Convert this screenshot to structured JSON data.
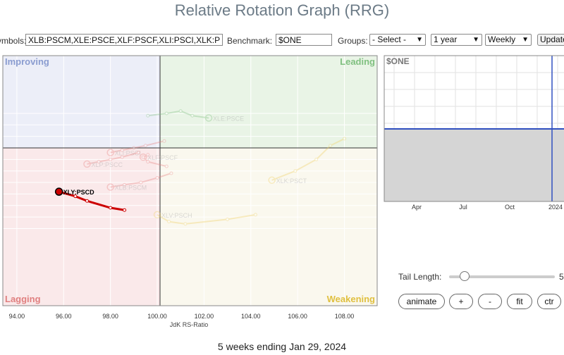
{
  "title": "Relative Rotation Graph (RRG)",
  "toolbar": {
    "symbols_label": "Symbols:",
    "symbols_value": "XLB:PSCM,XLE:PSCE,XLF:PSCF,XLI:PSCI,XLK:PSCT,XLP:PSCC,XLU:PSCU,XLV:PSCH,XLY:PSCD",
    "benchmark_label": "Benchmark:",
    "benchmark_value": "$ONE",
    "groups_label": "Groups:",
    "groups_value": "- Select -",
    "period_value": "1 year",
    "interval_value": "Weekly",
    "update_label": "Update"
  },
  "controls": {
    "tail_length_label": "Tail Length:",
    "tail_length_value": "5",
    "animate_label": "animate",
    "plus_label": "+",
    "minus_label": "-",
    "fit_label": "fit",
    "ctr_label": "ctr"
  },
  "footer": "5 weeks ending Jan 29, 2024",
  "colors": {
    "improving": "#eceef8",
    "leading": "#e9f4e6",
    "lagging": "#fae9ea",
    "weakening": "#faf8ee",
    "highlight": "#cc0000"
  },
  "chart_data": [
    {
      "type": "scatter",
      "xlabel": "JdK RS-Ratio",
      "ylabel": "",
      "xlim": [
        93.4,
        109.4
      ],
      "x_ticks": [
        "94.00",
        "96.00",
        "98.00",
        "100.00",
        "102.00",
        "104.00",
        "106.00",
        "108.00"
      ],
      "quadrants": [
        "Improving",
        "Leading",
        "Lagging",
        "Weakening"
      ],
      "series": [
        {
          "name": "XLY:PSCD",
          "highlight": true,
          "color": "#cc0000",
          "x": [
            98.6,
            98.0,
            97.0,
            96.5,
            95.8
          ],
          "y": [
            97.3,
            97.4,
            97.7,
            97.9,
            98.1
          ]
        },
        {
          "name": "XLE:PSCE",
          "color": "#7fc07f",
          "x": [
            99.6,
            100.4,
            101.0,
            101.5,
            102.2
          ],
          "y": [
            101.4,
            101.5,
            101.6,
            101.4,
            101.3
          ]
        },
        {
          "name": "XLK:PSCT",
          "color": "#f0d060",
          "x": [
            108.0,
            107.4,
            106.8,
            105.9,
            104.9
          ],
          "y": [
            100.4,
            100.1,
            99.5,
            99.0,
            98.6
          ]
        },
        {
          "name": "XLV:PSCH",
          "color": "#f0d060",
          "x": [
            104.2,
            103.0,
            101.2,
            100.5,
            100.0
          ],
          "y": [
            97.1,
            96.9,
            96.7,
            96.8,
            97.1
          ]
        },
        {
          "name": "XLI:PSCI",
          "color": "#e88080",
          "x": [
            100.3,
            99.5,
            99.0,
            98.5,
            98.0
          ],
          "y": [
            100.3,
            100.1,
            100.0,
            99.9,
            99.8
          ]
        },
        {
          "name": "XLF:PSCF",
          "color": "#e88080",
          "x": [
            100.4,
            99.6,
            99.4,
            99.6,
            99.4
          ],
          "y": [
            99.2,
            99.4,
            99.6,
            99.7,
            99.6
          ]
        },
        {
          "name": "XLP:PSCC",
          "color": "#e88080",
          "x": [
            99.2,
            98.5,
            98.0,
            97.5,
            97.0
          ],
          "y": [
            99.8,
            99.6,
            99.5,
            99.4,
            99.3
          ]
        },
        {
          "name": "XLB:PSCM",
          "color": "#e88080",
          "x": [
            100.6,
            100.0,
            99.3,
            98.6,
            98.0
          ],
          "y": [
            98.9,
            98.7,
            98.5,
            98.4,
            98.3
          ]
        }
      ],
      "labels": {
        "improving": "Improving",
        "leading": "Leading",
        "lagging": "Lagging",
        "weakening": "Weakening"
      }
    },
    {
      "type": "area",
      "title": "$ONE",
      "x_ticks": [
        "Apr",
        "Jul",
        "Oct",
        "2024"
      ],
      "ylim": [
        0,
        2
      ],
      "values": [
        1,
        1,
        1,
        1,
        1,
        1,
        1,
        1,
        1,
        1,
        1,
        1
      ],
      "color": "#3050c0"
    }
  ]
}
